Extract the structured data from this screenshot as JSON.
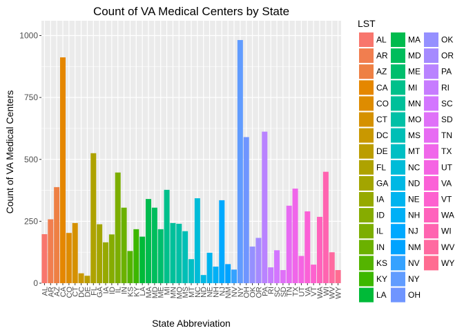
{
  "chart_data": {
    "type": "bar",
    "title": "Count of VA Medical Centers by State",
    "xlabel": "State Abbreviation",
    "ylabel": "Count of VA Medical Centers",
    "ylim": [
      0,
      1060
    ],
    "yticks": [
      0,
      250,
      500,
      750,
      1000
    ],
    "grid": true,
    "legend": {
      "title": "LST",
      "placement": "right",
      "columns": 3
    },
    "categories": [
      "AL",
      "AR",
      "AZ",
      "CA",
      "CO",
      "CT",
      "DC",
      "DE",
      "FL",
      "GA",
      "IA",
      "ID",
      "IL",
      "IN",
      "KS",
      "KY",
      "LA",
      "MA",
      "MD",
      "ME",
      "MI",
      "MN",
      "MO",
      "MS",
      "MT",
      "NC",
      "ND",
      "NE",
      "NH",
      "NJ",
      "NM",
      "NV",
      "NY",
      "OH",
      "OK",
      "OR",
      "PA",
      "RI",
      "SC",
      "SD",
      "TN",
      "TX",
      "UT",
      "VA",
      "VT",
      "WA",
      "WI",
      "WV",
      "WY"
    ],
    "values": [
      198,
      258,
      388,
      912,
      203,
      243,
      40,
      30,
      525,
      238,
      165,
      197,
      447,
      305,
      130,
      218,
      188,
      340,
      305,
      218,
      377,
      243,
      240,
      210,
      97,
      343,
      33,
      123,
      67,
      335,
      77,
      55,
      982,
      590,
      148,
      183,
      612,
      64,
      133,
      53,
      313,
      382,
      110,
      290,
      75,
      268,
      450,
      125,
      53
    ],
    "colors": [
      "#F8766D",
      "#F17E4F",
      "#EE8044",
      "#E58700",
      "#DE8C00",
      "#D59100",
      "#C99800",
      "#BB9D00",
      "#AEA200",
      "#A3A500",
      "#96A900",
      "#86AC00",
      "#7CAE00",
      "#6BB100",
      "#54B400",
      "#3CB700",
      "#00BA38",
      "#00BB4E",
      "#00BD5C",
      "#00BE6C",
      "#00C08B",
      "#00C09A",
      "#00C0A6",
      "#00BFB6",
      "#00BFC4",
      "#00BCD8",
      "#00B8E4",
      "#00B4EF",
      "#00B0F6",
      "#00A9FF",
      "#00A3FF",
      "#35A2FF",
      "#619CFF",
      "#6F95FF",
      "#9590FF",
      "#A58AFF",
      "#B983FF",
      "#C77CFF",
      "#D376FF",
      "#DF70F8",
      "#E76BF3",
      "#F066EA",
      "#F564E3",
      "#FB61D7",
      "#FD61CF",
      "#FF62BC",
      "#FF64B0",
      "#FF6AA0",
      "#FF6C91"
    ]
  }
}
